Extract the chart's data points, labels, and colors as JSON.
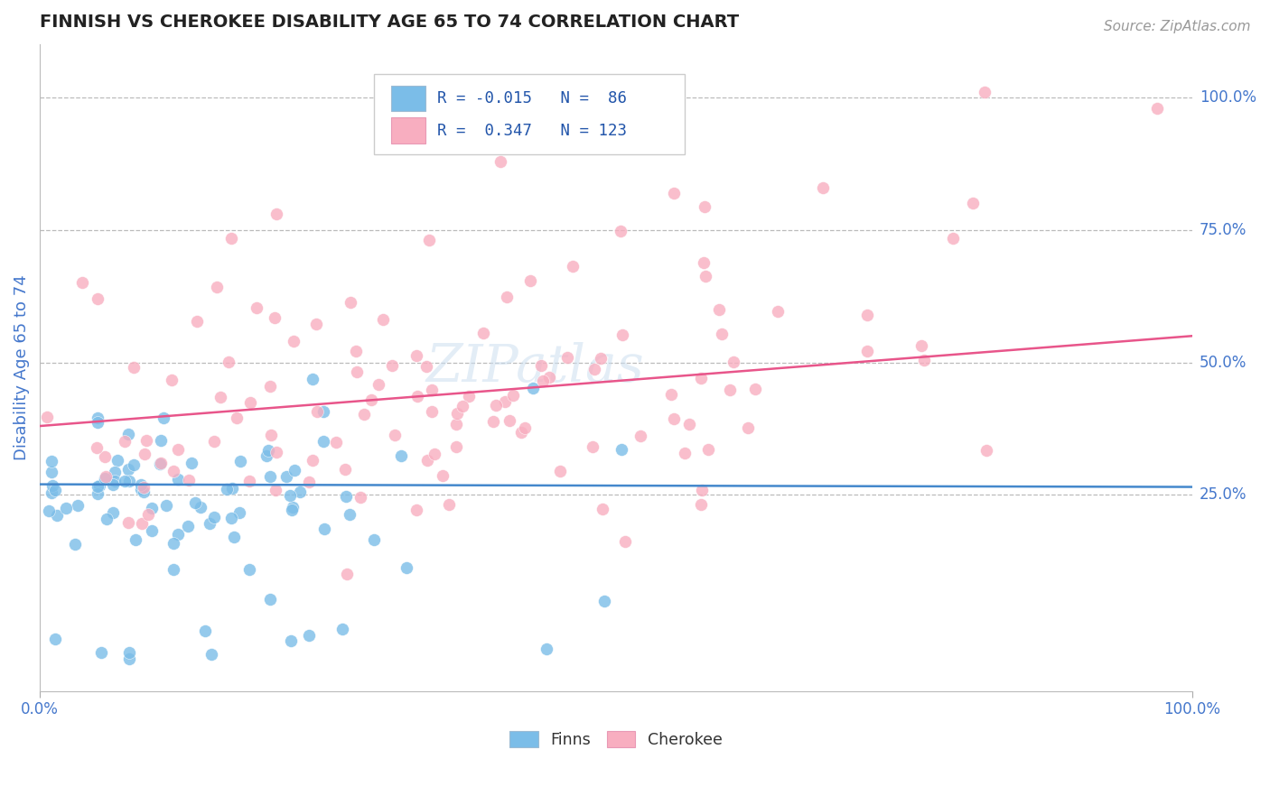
{
  "title": "FINNISH VS CHEROKEE DISABILITY AGE 65 TO 74 CORRELATION CHART",
  "source_text": "Source: ZipAtlas.com",
  "ylabel": "Disability Age 65 to 74",
  "x_tick_labels": [
    "0.0%",
    "100.0%"
  ],
  "y_tick_labels": [
    "25.0%",
    "50.0%",
    "75.0%",
    "100.0%"
  ],
  "y_tick_values": [
    0.25,
    0.5,
    0.75,
    1.0
  ],
  "finns_color": "#7bbde8",
  "cherokee_color": "#f8aec0",
  "finns_line_color": "#4488cc",
  "cherokee_line_color": "#e8558a",
  "finns_R": -0.015,
  "finns_N": 86,
  "cherokee_R": 0.347,
  "cherokee_N": 123,
  "watermark": "ZIPatlas",
  "background_color": "#ffffff",
  "grid_color": "#bbbbbb",
  "title_color": "#222222",
  "axis_label_color": "#4477cc",
  "legend_text_color": "#2255aa"
}
